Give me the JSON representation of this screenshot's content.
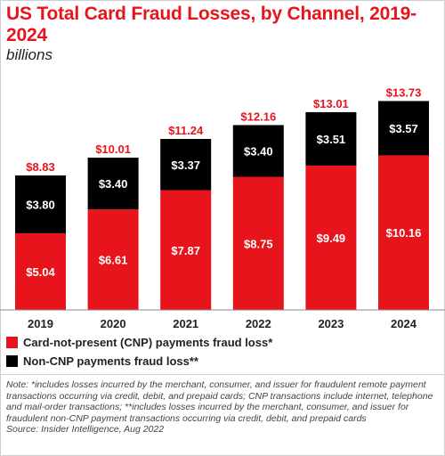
{
  "title": "US Total Card Fraud Losses, by Channel, 2019-2024",
  "subtitle": "billions",
  "colors": {
    "cnp": "#e8141b",
    "non_cnp": "#000000",
    "total_label": "#e8141b"
  },
  "legend": [
    {
      "label": "Card-not-present (CNP) payments fraud loss*",
      "color": "#e8141b"
    },
    {
      "label": "Non-CNP payments fraud loss**",
      "color": "#000000"
    }
  ],
  "chart_data": {
    "type": "bar",
    "stacked": true,
    "categories": [
      "2019",
      "2020",
      "2021",
      "2022",
      "2023",
      "2024"
    ],
    "series": [
      {
        "name": "Card-not-present (CNP) payments fraud loss*",
        "values": [
          5.04,
          6.61,
          7.87,
          8.75,
          9.49,
          10.16
        ],
        "labels": [
          "$5.04",
          "$6.61",
          "$7.87",
          "$8.75",
          "$9.49",
          "$10.16"
        ]
      },
      {
        "name": "Non-CNP payments fraud loss**",
        "values": [
          3.8,
          3.4,
          3.37,
          3.4,
          3.51,
          3.57
        ],
        "labels": [
          "$3.80",
          "$3.40",
          "$3.37",
          "$3.40",
          "$3.51",
          "$3.57"
        ]
      }
    ],
    "totals": [
      8.83,
      10.01,
      11.24,
      12.16,
      13.01,
      13.73
    ],
    "total_labels": [
      "$8.83",
      "$10.01",
      "$11.24",
      "$12.16",
      "$13.01",
      "$13.73"
    ],
    "ylim": [
      0,
      14.4
    ],
    "grid": false
  },
  "note": "Note: *includes losses incurred by the merchant, consumer, and issuer for fraudulent remote payment transactions occurring via credit, debit, and prepaid cards; CNP transactions include internet, telephone and mail-order transactions; **includes losses incurred by the merchant, consumer, and issuer for fraudulent non-CNP payment transactions occurring via credit, debit, and prepaid cards",
  "source": "Source: Insider Intelligence, Aug 2022"
}
